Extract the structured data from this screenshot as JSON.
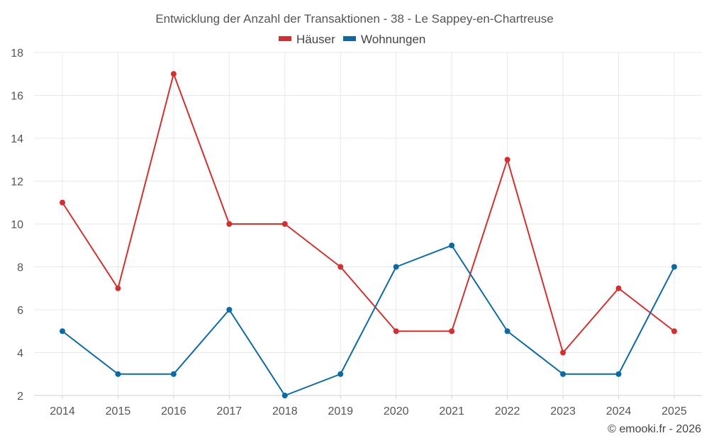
{
  "chart_data": {
    "type": "line",
    "title": "Entwicklung der Anzahl der Transaktionen - 38 - Le Sappey-en-Chartreuse",
    "categories": [
      "2014",
      "2015",
      "2016",
      "2017",
      "2018",
      "2019",
      "2020",
      "2021",
      "2022",
      "2023",
      "2024",
      "2025"
    ],
    "series": [
      {
        "name": "Häuser",
        "color": "#d32f2f",
        "values": [
          11,
          7,
          17,
          10,
          10,
          8,
          5,
          5,
          13,
          4,
          7,
          5
        ]
      },
      {
        "name": "Wohnungen",
        "color": "#0b6aa2",
        "values": [
          5,
          3,
          3,
          6,
          2,
          3,
          8,
          9,
          5,
          3,
          3,
          8
        ]
      }
    ],
    "ylim": [
      2,
      18
    ],
    "yticks": [
      2,
      4,
      6,
      8,
      10,
      12,
      14,
      16,
      18
    ],
    "grid": true,
    "legend_position": "top-center"
  },
  "credit": "© emooki.fr - 2026"
}
